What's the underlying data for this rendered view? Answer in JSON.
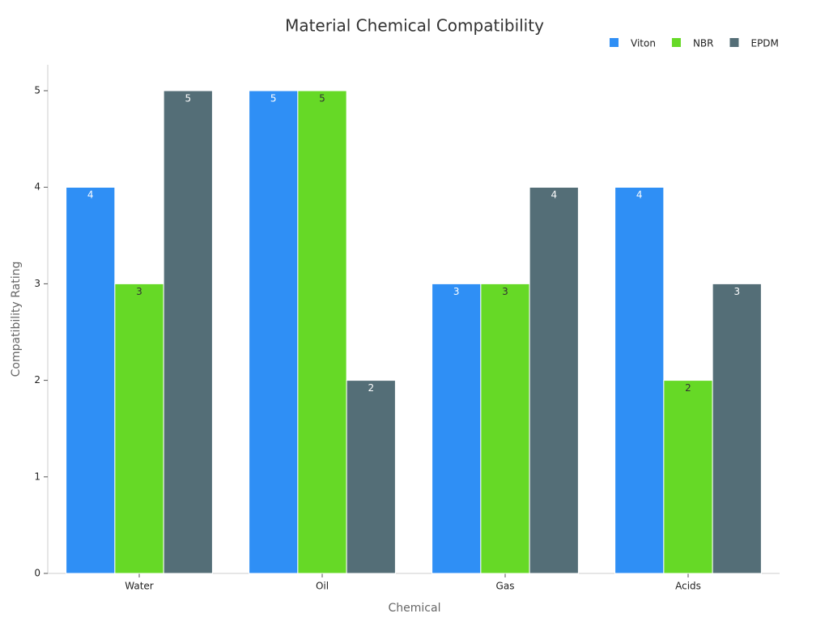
{
  "chart_data": {
    "type": "bar",
    "title": "Material Chemical Compatibility",
    "x_label": "Chemical",
    "y_label": "Compatibility Rating",
    "categories": [
      "Water",
      "Oil",
      "Gas",
      "Acids"
    ],
    "series": [
      {
        "name": "Viton",
        "color": "#2f8ff5",
        "values": [
          4,
          5,
          3,
          4
        ]
      },
      {
        "name": "NBR",
        "color": "#66d926",
        "values": [
          3,
          5,
          3,
          2
        ]
      },
      {
        "name": "EPDM",
        "color": "#546e77",
        "values": [
          5,
          2,
          4,
          3
        ]
      }
    ],
    "ylim": [
      0,
      5.25
    ],
    "yticks": [
      0,
      1,
      2,
      3,
      4,
      5
    ],
    "grid": false,
    "legend": "top-right"
  }
}
